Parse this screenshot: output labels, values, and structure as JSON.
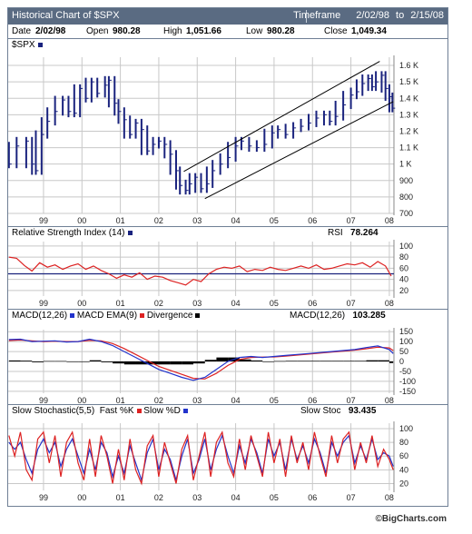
{
  "header": {
    "title": "Historical Chart of $SPX",
    "timeframe_label": "Timeframe",
    "timeframe_start": "2/02/98",
    "timeframe_to": "to",
    "timeframe_end": "2/15/08"
  },
  "info": {
    "date_label": "Date",
    "date": "2/02/98",
    "open_label": "Open",
    "open": "980.28",
    "high_label": "High",
    "high": "1,051.66",
    "low_label": "Low",
    "low": "980.28",
    "close_label": "Close",
    "close": "1,049.34"
  },
  "colors": {
    "price": "#1a237e",
    "channel": "#000000",
    "rsi": "#dd2222",
    "macd": "#2233cc",
    "ema": "#dd2222",
    "stoch_k": "#dd2222",
    "stoch_d": "#2233cc",
    "grid": "#c8c8c8"
  },
  "footer": "©BigCharts.com",
  "chart_data": [
    {
      "type": "bar",
      "name": "$SPX",
      "label": "$SPX",
      "x_tick_labels": [
        "99",
        "00",
        "01",
        "02",
        "03",
        "04",
        "05",
        "06",
        "07",
        "08"
      ],
      "x_tick_positions": [
        1999,
        2000,
        2001,
        2002,
        2003,
        2004,
        2005,
        2006,
        2007,
        2008
      ],
      "x_range": [
        1998.08,
        2008.12
      ],
      "y_tick_labels": [
        "1.6 K",
        "1.5 K",
        "1.4 K",
        "1.3 K",
        "1.2 K",
        "1.1 K",
        "1 K",
        "900",
        "800",
        "700"
      ],
      "y_tick_values": [
        1600,
        1500,
        1400,
        1300,
        1200,
        1100,
        1000,
        900,
        800,
        700
      ],
      "ylim": [
        700,
        1650
      ],
      "grid": true,
      "points": [
        [
          1998.1,
          1000
        ],
        [
          1998.3,
          1110
        ],
        [
          1998.55,
          1140
        ],
        [
          1998.7,
          1000
        ],
        [
          1998.8,
          960
        ],
        [
          1998.95,
          1180
        ],
        [
          1999.1,
          1260
        ],
        [
          1999.3,
          1320
        ],
        [
          1999.5,
          1390
        ],
        [
          1999.65,
          1320
        ],
        [
          1999.8,
          1310
        ],
        [
          1999.95,
          1460
        ],
        [
          2000.1,
          1400
        ],
        [
          2000.25,
          1500
        ],
        [
          2000.4,
          1430
        ],
        [
          2000.6,
          1480
        ],
        [
          2000.7,
          1510
        ],
        [
          2000.85,
          1370
        ],
        [
          2000.95,
          1320
        ],
        [
          2001.1,
          1270
        ],
        [
          2001.25,
          1180
        ],
        [
          2001.4,
          1250
        ],
        [
          2001.55,
          1210
        ],
        [
          2001.7,
          1080
        ],
        [
          2001.85,
          1120
        ],
        [
          2002.0,
          1140
        ],
        [
          2002.15,
          1120
        ],
        [
          2002.3,
          1060
        ],
        [
          2002.45,
          960
        ],
        [
          2002.55,
          870
        ],
        [
          2002.7,
          840
        ],
        [
          2002.8,
          880
        ],
        [
          2002.95,
          920
        ],
        [
          2003.1,
          850
        ],
        [
          2003.25,
          880
        ],
        [
          2003.4,
          960
        ],
        [
          2003.6,
          1000
        ],
        [
          2003.8,
          1040
        ],
        [
          2004.0,
          1110
        ],
        [
          2004.15,
          1140
        ],
        [
          2004.35,
          1110
        ],
        [
          2004.55,
          1100
        ],
        [
          2004.75,
          1120
        ],
        [
          2004.95,
          1190
        ],
        [
          2005.1,
          1210
        ],
        [
          2005.3,
          1180
        ],
        [
          2005.5,
          1220
        ],
        [
          2005.7,
          1230
        ],
        [
          2005.9,
          1250
        ],
        [
          2006.1,
          1280
        ],
        [
          2006.3,
          1300
        ],
        [
          2006.45,
          1260
        ],
        [
          2006.6,
          1290
        ],
        [
          2006.8,
          1360
        ],
        [
          2007.0,
          1420
        ],
        [
          2007.15,
          1440
        ],
        [
          2007.3,
          1490
        ],
        [
          2007.45,
          1520
        ],
        [
          2007.55,
          1470
        ],
        [
          2007.65,
          1500
        ],
        [
          2007.8,
          1540
        ],
        [
          2007.9,
          1460
        ],
        [
          2008.0,
          1410
        ],
        [
          2008.08,
          1340
        ]
      ],
      "trendlines": [
        {
          "from": [
            2002.65,
            955
          ],
          "to": [
            2007.75,
            1625
          ]
        },
        {
          "from": [
            2003.2,
            790
          ],
          "to": [
            2008.1,
            1380
          ]
        }
      ]
    },
    {
      "type": "line",
      "label": "Relative Strength Index (14)",
      "value_label": "RSI",
      "value": "78.264",
      "y_tick_labels": [
        "100",
        "80",
        "60",
        "40",
        "20"
      ],
      "y_tick_values": [
        100,
        80,
        60,
        40,
        20
      ],
      "ylim": [
        10,
        108
      ],
      "reference_line": 50,
      "x": [
        1998.1,
        1998.3,
        1998.5,
        1998.7,
        1998.9,
        1999.1,
        1999.3,
        1999.5,
        1999.7,
        1999.9,
        2000.1,
        2000.3,
        2000.5,
        2000.7,
        2000.9,
        2001.1,
        2001.3,
        2001.5,
        2001.7,
        2001.9,
        2002.1,
        2002.3,
        2002.5,
        2002.7,
        2002.9,
        2003.1,
        2003.3,
        2003.5,
        2003.7,
        2003.9,
        2004.1,
        2004.3,
        2004.5,
        2004.7,
        2004.9,
        2005.1,
        2005.3,
        2005.5,
        2005.7,
        2005.9,
        2006.1,
        2006.3,
        2006.5,
        2006.7,
        2006.9,
        2007.1,
        2007.3,
        2007.5,
        2007.7,
        2007.9,
        2008.05
      ],
      "series": [
        {
          "values": [
            80,
            78,
            65,
            55,
            70,
            62,
            66,
            58,
            64,
            68,
            58,
            64,
            56,
            50,
            42,
            48,
            44,
            52,
            40,
            46,
            44,
            38,
            34,
            30,
            40,
            36,
            50,
            58,
            62,
            60,
            64,
            54,
            58,
            56,
            62,
            58,
            56,
            60,
            64,
            60,
            66,
            58,
            60,
            64,
            68,
            66,
            70,
            62,
            72,
            64,
            46
          ]
        }
      ]
    },
    {
      "type": "line",
      "label": "MACD(12,26)",
      "legend": [
        "MACD(12,26)",
        "MACD EMA(9)",
        "Divergence"
      ],
      "value_label": "MACD(12,26)",
      "value": "103.285",
      "y_tick_labels": [
        "150",
        "100",
        "50",
        "0",
        "-50",
        "-100",
        "-150"
      ],
      "y_tick_values": [
        150,
        100,
        50,
        0,
        -50,
        -100,
        -150
      ],
      "ylim": [
        -160,
        160
      ],
      "x": [
        1998.1,
        1998.4,
        1998.7,
        1999.0,
        1999.3,
        1999.6,
        1999.9,
        2000.2,
        2000.5,
        2000.8,
        2001.1,
        2001.4,
        2001.7,
        2002.0,
        2002.3,
        2002.6,
        2002.9,
        2003.2,
        2003.5,
        2003.8,
        2004.1,
        2004.4,
        2004.7,
        2005.0,
        2005.3,
        2005.6,
        2005.9,
        2006.2,
        2006.5,
        2006.8,
        2007.1,
        2007.4,
        2007.7,
        2008.0,
        2008.1
      ],
      "series": [
        {
          "name": "MACD(12,26)",
          "values": [
            110,
            112,
            100,
            102,
            104,
            98,
            100,
            112,
            100,
            80,
            50,
            20,
            -10,
            -40,
            -60,
            -80,
            -95,
            -80,
            -40,
            0,
            20,
            25,
            20,
            25,
            30,
            35,
            40,
            45,
            50,
            55,
            60,
            70,
            78,
            60,
            40
          ]
        },
        {
          "name": "MACD EMA(9)",
          "values": [
            105,
            108,
            104,
            100,
            102,
            100,
            100,
            106,
            104,
            90,
            65,
            35,
            5,
            -25,
            -45,
            -65,
            -85,
            -88,
            -60,
            -20,
            10,
            20,
            22,
            23,
            27,
            32,
            37,
            42,
            47,
            52,
            57,
            64,
            72,
            68,
            55
          ]
        },
        {
          "name": "Divergence",
          "values": [
            5,
            4,
            -4,
            2,
            2,
            -2,
            0,
            6,
            -4,
            -10,
            -15,
            -15,
            -15,
            -15,
            -15,
            -15,
            -10,
            8,
            20,
            20,
            10,
            5,
            -2,
            2,
            3,
            3,
            3,
            3,
            3,
            3,
            3,
            6,
            6,
            -8,
            -15
          ]
        }
      ]
    },
    {
      "type": "line",
      "label": "Slow Stochastic(5,5)",
      "legend": [
        "Fast %K",
        "Slow %D"
      ],
      "value_label": "Slow Stoc",
      "value": "93.435",
      "y_tick_labels": [
        "100",
        "80",
        "60",
        "40",
        "20"
      ],
      "y_tick_values": [
        100,
        80,
        60,
        40,
        20
      ],
      "ylim": [
        10,
        108
      ],
      "x": [
        1998.1,
        1998.25,
        1998.4,
        1998.55,
        1998.7,
        1998.85,
        1999.0,
        1999.15,
        1999.3,
        1999.45,
        1999.6,
        1999.75,
        1999.9,
        2000.05,
        2000.2,
        2000.35,
        2000.5,
        2000.65,
        2000.8,
        2000.95,
        2001.1,
        2001.25,
        2001.4,
        2001.55,
        2001.7,
        2001.85,
        2002.0,
        2002.15,
        2002.3,
        2002.45,
        2002.6,
        2002.75,
        2002.9,
        2003.05,
        2003.2,
        2003.35,
        2003.5,
        2003.65,
        2003.8,
        2003.95,
        2004.1,
        2004.25,
        2004.4,
        2004.55,
        2004.7,
        2004.85,
        2005.0,
        2005.15,
        2005.3,
        2005.45,
        2005.6,
        2005.75,
        2005.9,
        2006.05,
        2006.2,
        2006.35,
        2006.5,
        2006.65,
        2006.8,
        2006.95,
        2007.1,
        2007.25,
        2007.4,
        2007.55,
        2007.7,
        2007.85,
        2008.0,
        2008.1
      ],
      "series": [
        {
          "name": "Fast %K",
          "values": [
            90,
            60,
            95,
            40,
            25,
            85,
            95,
            50,
            90,
            30,
            80,
            95,
            50,
            25,
            85,
            30,
            90,
            60,
            20,
            70,
            25,
            85,
            40,
            20,
            75,
            90,
            30,
            80,
            50,
            20,
            70,
            90,
            25,
            60,
            95,
            30,
            80,
            95,
            50,
            30,
            85,
            40,
            90,
            60,
            30,
            95,
            50,
            85,
            30,
            90,
            50,
            80,
            40,
            95,
            60,
            30,
            90,
            50,
            85,
            95,
            40,
            80,
            50,
            90,
            45,
            70,
            55,
            40
          ]
        },
        {
          "name": "Slow %D",
          "values": [
            80,
            70,
            80,
            55,
            35,
            70,
            85,
            65,
            80,
            45,
            70,
            85,
            60,
            35,
            70,
            40,
            80,
            65,
            30,
            60,
            35,
            75,
            50,
            25,
            65,
            85,
            40,
            70,
            55,
            25,
            60,
            85,
            35,
            55,
            85,
            40,
            70,
            90,
            60,
            35,
            75,
            50,
            85,
            65,
            35,
            85,
            60,
            80,
            40,
            85,
            55,
            75,
            50,
            85,
            65,
            35,
            80,
            60,
            80,
            90,
            50,
            75,
            55,
            85,
            55,
            65,
            60,
            45
          ]
        }
      ]
    }
  ]
}
